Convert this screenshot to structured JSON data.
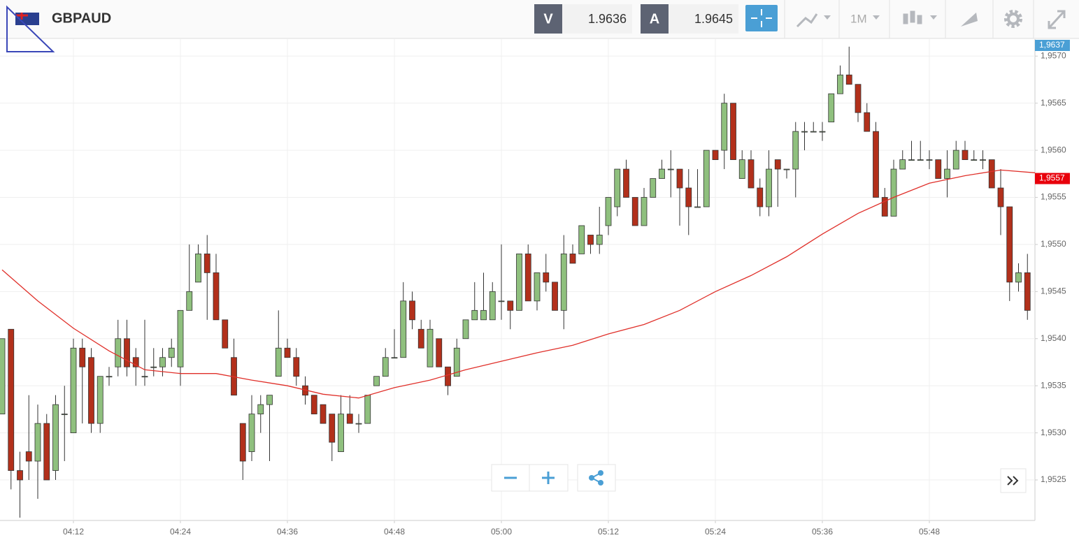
{
  "header": {
    "symbol": "GBPAUD",
    "bid_label": "V",
    "bid": 1.9636,
    "ask_label": "A",
    "ask": 1.9645,
    "timeframe": "1M"
  },
  "chart_data": {
    "type": "candlestick",
    "x": [
      "04:04",
      "04:05",
      "04:06",
      "04:07",
      "04:08",
      "04:09",
      "04:10",
      "04:11",
      "04:12",
      "04:13",
      "04:14",
      "04:15",
      "04:16",
      "04:17",
      "04:18",
      "04:19",
      "04:20",
      "04:21",
      "04:22",
      "04:23",
      "04:24",
      "04:25",
      "04:26",
      "04:27",
      "04:28",
      "04:29",
      "04:30",
      "04:31",
      "04:32",
      "04:33",
      "04:34",
      "04:35",
      "04:36",
      "04:37",
      "04:38",
      "04:39",
      "04:40",
      "04:41",
      "04:42",
      "04:43",
      "04:44",
      "04:45",
      "04:46",
      "04:47",
      "04:48",
      "04:49",
      "04:50",
      "04:51",
      "04:52",
      "04:53",
      "04:54",
      "04:55",
      "04:56",
      "04:57",
      "04:58",
      "04:59",
      "05:00",
      "05:01",
      "05:02",
      "05:03",
      "05:04",
      "05:05",
      "05:06",
      "05:07",
      "05:08",
      "05:09",
      "05:10",
      "05:11",
      "05:12",
      "05:13",
      "05:14",
      "05:15",
      "05:16",
      "05:17",
      "05:18",
      "05:19",
      "05:20",
      "05:21",
      "05:22",
      "05:23",
      "05:24",
      "05:25",
      "05:26",
      "05:27",
      "05:28",
      "05:29",
      "05:30",
      "05:31",
      "05:32",
      "05:33",
      "05:34",
      "05:35",
      "05:36",
      "05:37",
      "05:38",
      "05:39",
      "05:40",
      "05:41",
      "05:42",
      "05:43",
      "05:44",
      "05:45",
      "05:46",
      "05:47",
      "05:48",
      "05:49",
      "05:50",
      "05:51",
      "05:52",
      "05:53",
      "05:54",
      "05:55",
      "05:56",
      "05:57",
      "05:58",
      "05:59"
    ],
    "open": [
      1.9532,
      1.9541,
      1.9526,
      1.9528,
      1.9527,
      1.9531,
      1.9526,
      1.9532,
      1.953,
      1.9539,
      1.9538,
      1.9531,
      1.9536,
      1.9537,
      1.954,
      1.9538,
      1.9536,
      1.9537,
      1.9537,
      1.9538,
      1.9537,
      1.9543,
      1.9546,
      1.9549,
      1.9547,
      1.9542,
      1.9538,
      1.9531,
      1.9528,
      1.9532,
      1.9533,
      1.9536,
      1.9539,
      1.9538,
      1.9535,
      1.9534,
      1.9533,
      1.9532,
      1.9528,
      1.9532,
      1.9531,
      1.9531,
      1.9535,
      1.9536,
      1.9538,
      1.9538,
      1.9544,
      1.9541,
      1.9537,
      1.954,
      1.9537,
      1.9536,
      1.954,
      1.9542,
      1.9542,
      1.9542,
      1.9544,
      1.9544,
      1.9543,
      1.9549,
      1.9544,
      1.9547,
      1.9546,
      1.9543,
      1.9549,
      1.9549,
      1.9551,
      1.955,
      1.9552,
      1.9554,
      1.9558,
      1.9555,
      1.9552,
      1.9555,
      1.9557,
      1.9558,
      1.9558,
      1.9556,
      1.9554,
      1.9554,
      1.956,
      1.956,
      1.9565,
      1.9557,
      1.9559,
      1.9556,
      1.9554,
      1.9559,
      1.9558,
      1.9558,
      1.9562,
      1.9562,
      1.9562,
      1.9563,
      1.9566,
      1.9568,
      1.9567,
      1.9564,
      1.9562,
      1.9555,
      1.9553,
      1.9558,
      1.9559,
      1.9559,
      1.9559,
      1.9559,
      1.9557,
      1.9558,
      1.956,
      1.9559,
      1.9559,
      1.9559,
      1.9556,
      1.9554,
      1.9546,
      1.9547
    ],
    "high": [
      1.954,
      1.9541,
      1.9528,
      1.9534,
      1.9533,
      1.9532,
      1.9534,
      1.9535,
      1.954,
      1.954,
      1.9539,
      1.9536,
      1.9537,
      1.9542,
      1.9542,
      1.9539,
      1.9542,
      1.9539,
      1.9539,
      1.954,
      1.9543,
      1.955,
      1.955,
      1.9551,
      1.9549,
      1.9542,
      1.954,
      1.9531,
      1.9534,
      1.9534,
      1.9534,
      1.9543,
      1.954,
      1.9539,
      1.9536,
      1.9534,
      1.9533,
      1.9532,
      1.9534,
      1.9534,
      1.9532,
      1.9534,
      1.9536,
      1.9539,
      1.9541,
      1.9546,
      1.9545,
      1.9542,
      1.9542,
      1.954,
      1.9537,
      1.954,
      1.9542,
      1.9546,
      1.9547,
      1.9546,
      1.955,
      1.9544,
      1.9549,
      1.955,
      1.9547,
      1.9549,
      1.9546,
      1.9551,
      1.955,
      1.9552,
      1.9551,
      1.9554,
      1.9555,
      1.9558,
      1.9559,
      1.9555,
      1.9556,
      1.9557,
      1.9559,
      1.956,
      1.9558,
      1.9558,
      1.9558,
      1.956,
      1.956,
      1.9566,
      1.9565,
      1.956,
      1.956,
      1.9557,
      1.956,
      1.9559,
      1.9558,
      1.9563,
      1.9563,
      1.9563,
      1.9563,
      1.9566,
      1.9569,
      1.9571,
      1.9567,
      1.9565,
      1.9563,
      1.9556,
      1.9559,
      1.956,
      1.9561,
      1.9561,
      1.956,
      1.9559,
      1.956,
      1.9561,
      1.9561,
      1.956,
      1.956,
      1.9559,
      1.9558,
      1.9554,
      1.9548,
      1.9549
    ],
    "low": [
      1.9532,
      1.9524,
      1.9521,
      1.9525,
      1.9523,
      1.9525,
      1.9525,
      1.9527,
      1.953,
      1.9531,
      1.953,
      1.953,
      1.9535,
      1.9536,
      1.9536,
      1.9535,
      1.9535,
      1.9536,
      1.9536,
      1.9537,
      1.9535,
      1.9543,
      1.9546,
      1.9542,
      1.9542,
      1.9539,
      1.9534,
      1.9525,
      1.9527,
      1.953,
      1.9527,
      1.9536,
      1.9538,
      1.9535,
      1.9533,
      1.9532,
      1.9531,
      1.9527,
      1.9528,
      1.9531,
      1.953,
      1.9531,
      1.9535,
      1.9536,
      1.9538,
      1.9538,
      1.9541,
      1.9539,
      1.9537,
      1.9537,
      1.9534,
      1.9536,
      1.954,
      1.9542,
      1.9542,
      1.9542,
      1.9542,
      1.9541,
      1.9543,
      1.9544,
      1.9543,
      1.9545,
      1.9543,
      1.9541,
      1.9548,
      1.9549,
      1.9549,
      1.9549,
      1.9551,
      1.9553,
      1.9555,
      1.9552,
      1.9552,
      1.9555,
      1.9557,
      1.9555,
      1.9552,
      1.9551,
      1.9554,
      1.9554,
      1.9559,
      1.9558,
      1.9559,
      1.9557,
      1.9556,
      1.9553,
      1.9553,
      1.9554,
      1.9557,
      1.9555,
      1.956,
      1.9562,
      1.9561,
      1.9563,
      1.9566,
      1.9567,
      1.9563,
      1.9562,
      1.9555,
      1.9553,
      1.9553,
      1.9558,
      1.9559,
      1.9559,
      1.9558,
      1.9557,
      1.9555,
      1.9558,
      1.9559,
      1.9559,
      1.9558,
      1.9556,
      1.9551,
      1.9544,
      1.9545,
      1.9542
    ],
    "close": [
      1.954,
      1.9526,
      1.9525,
      1.9527,
      1.9531,
      1.9525,
      1.9533,
      1.9532,
      1.9539,
      1.9537,
      1.9531,
      1.9536,
      1.9536,
      1.954,
      1.9537,
      1.9537,
      1.9536,
      1.9537,
      1.9538,
      1.9539,
      1.9543,
      1.9545,
      1.9549,
      1.9547,
      1.9542,
      1.9539,
      1.9534,
      1.9527,
      1.9532,
      1.9533,
      1.9534,
      1.9539,
      1.9538,
      1.9536,
      1.9534,
      1.9532,
      1.9531,
      1.9529,
      1.9532,
      1.9531,
      1.9531,
      1.9534,
      1.9536,
      1.9538,
      1.9538,
      1.9544,
      1.9542,
      1.9539,
      1.9541,
      1.9537,
      1.9535,
      1.9539,
      1.9542,
      1.9543,
      1.9543,
      1.9545,
      1.9544,
      1.9543,
      1.9549,
      1.9544,
      1.9547,
      1.9546,
      1.9543,
      1.9549,
      1.9548,
      1.9552,
      1.955,
      1.9551,
      1.9555,
      1.9558,
      1.9555,
      1.9552,
      1.9555,
      1.9557,
      1.9558,
      1.9558,
      1.9556,
      1.9554,
      1.9554,
      1.956,
      1.9559,
      1.9565,
      1.9559,
      1.9559,
      1.9556,
      1.9554,
      1.9558,
      1.9558,
      1.9558,
      1.9562,
      1.9562,
      1.9562,
      1.9562,
      1.9566,
      1.9568,
      1.9567,
      1.9564,
      1.9562,
      1.9555,
      1.9553,
      1.9558,
      1.9559,
      1.9559,
      1.9559,
      1.9559,
      1.9557,
      1.9558,
      1.956,
      1.9559,
      1.9559,
      1.9559,
      1.9556,
      1.9554,
      1.9546,
      1.9547,
      1.9543
    ],
    "up_color": "#8fc07e",
    "down_color": "#b2301b",
    "moving_average": {
      "color": "#e0302a",
      "x": [
        "04:04",
        "04:08",
        "04:12",
        "04:16",
        "04:20",
        "04:24",
        "04:28",
        "04:32",
        "04:36",
        "04:40",
        "04:44",
        "04:48",
        "04:52",
        "04:56",
        "05:00",
        "05:04",
        "05:08",
        "05:12",
        "05:16",
        "05:20",
        "05:24",
        "05:28",
        "05:32",
        "05:36",
        "05:40",
        "05:44",
        "05:48",
        "05:52",
        "05:56",
        "06:00"
      ],
      "values": [
        1.95473,
        1.9544,
        1.95411,
        1.95387,
        1.95367,
        1.95363,
        1.95363,
        1.95356,
        1.9535,
        1.95341,
        1.95337,
        1.95348,
        1.95356,
        1.95367,
        1.95376,
        1.95385,
        1.95393,
        1.95405,
        1.95415,
        1.9543,
        1.9545,
        1.95467,
        1.95487,
        1.95511,
        1.95533,
        1.9555,
        1.95565,
        1.95573,
        1.95579,
        1.95576
      ]
    },
    "price_tags": [
      {
        "value": 1.9637,
        "label": "1,9637",
        "color": "#4a9fd5"
      },
      {
        "value": 1.9557,
        "label": "1,9557",
        "color": "#e8000b"
      }
    ],
    "xlim": [
      "04:04",
      "06:00"
    ],
    "xticks": [
      "04:12",
      "04:24",
      "04:36",
      "04:48",
      "05:00",
      "05:12",
      "05:24",
      "05:36",
      "05:48"
    ],
    "ylim": [
      1.95207,
      1.95718
    ],
    "yticks": [
      {
        "value": 1.9525,
        "label": "1,9525"
      },
      {
        "value": 1.953,
        "label": "1,9530"
      },
      {
        "value": 1.9535,
        "label": "1,9535"
      },
      {
        "value": 1.954,
        "label": "1,9540"
      },
      {
        "value": 1.9545,
        "label": "1,9545"
      },
      {
        "value": 1.955,
        "label": "1,9550"
      },
      {
        "value": 1.9555,
        "label": "1,9555"
      },
      {
        "value": 1.956,
        "label": "1,9560"
      },
      {
        "value": 1.9565,
        "label": "1,9565"
      },
      {
        "value": 1.957,
        "label": "1,9570"
      }
    ],
    "grid": true
  }
}
